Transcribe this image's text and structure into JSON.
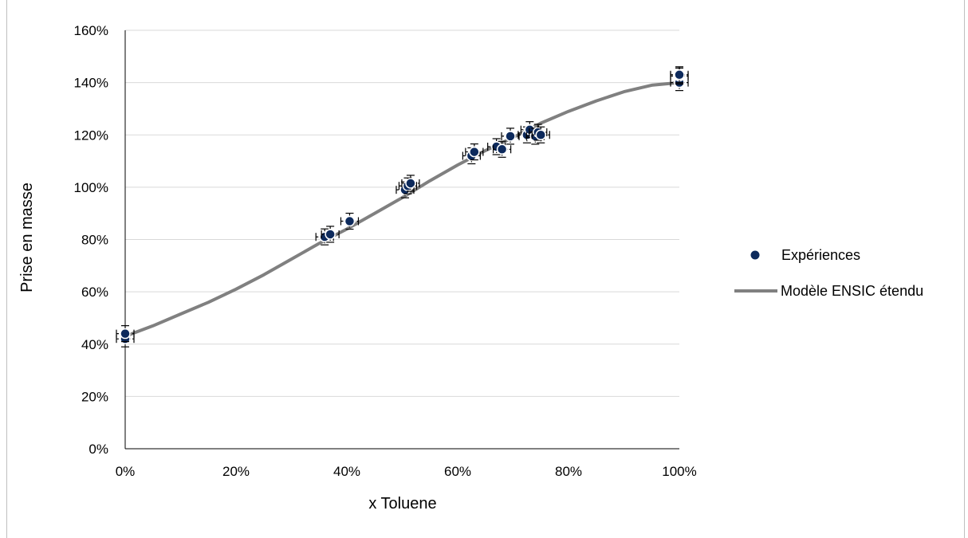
{
  "chart_data": {
    "type": "scatter",
    "title": "",
    "xlabel": "x Toluene",
    "ylabel": "Prise en masse",
    "xlim": [
      0,
      1
    ],
    "ylim": [
      0,
      1.6
    ],
    "x_ticks": [
      "0%",
      "20%",
      "40%",
      "60%",
      "80%",
      "100%"
    ],
    "y_ticks": [
      "0%",
      "20%",
      "40%",
      "60%",
      "80%",
      "100%",
      "120%",
      "140%",
      "160%"
    ],
    "grid": "horizontal",
    "legend_position": "right",
    "series": [
      {
        "name": "Expériences",
        "kind": "scatter",
        "color": "#0d2a5c",
        "points": [
          {
            "x": 0.0,
            "y": 0.42
          },
          {
            "x": 0.0,
            "y": 0.44
          },
          {
            "x": 0.36,
            "y": 0.81
          },
          {
            "x": 0.37,
            "y": 0.82
          },
          {
            "x": 0.405,
            "y": 0.87
          },
          {
            "x": 0.505,
            "y": 0.99
          },
          {
            "x": 0.51,
            "y": 1.005
          },
          {
            "x": 0.515,
            "y": 1.015
          },
          {
            "x": 0.625,
            "y": 1.12
          },
          {
            "x": 0.63,
            "y": 1.135
          },
          {
            "x": 0.67,
            "y": 1.155
          },
          {
            "x": 0.68,
            "y": 1.145
          },
          {
            "x": 0.695,
            "y": 1.195
          },
          {
            "x": 0.725,
            "y": 1.2
          },
          {
            "x": 0.73,
            "y": 1.22
          },
          {
            "x": 0.74,
            "y": 1.195
          },
          {
            "x": 0.745,
            "y": 1.21
          },
          {
            "x": 0.75,
            "y": 1.2
          },
          {
            "x": 1.0,
            "y": 1.4
          },
          {
            "x": 1.0,
            "y": 1.425
          },
          {
            "x": 1.0,
            "y": 1.43
          }
        ]
      },
      {
        "name": "Modèle ENSIC étendu",
        "kind": "line",
        "color": "#808080",
        "points": [
          {
            "x": 0.0,
            "y": 0.43
          },
          {
            "x": 0.05,
            "y": 0.47
          },
          {
            "x": 0.1,
            "y": 0.515
          },
          {
            "x": 0.15,
            "y": 0.56
          },
          {
            "x": 0.2,
            "y": 0.61
          },
          {
            "x": 0.25,
            "y": 0.665
          },
          {
            "x": 0.3,
            "y": 0.725
          },
          {
            "x": 0.35,
            "y": 0.785
          },
          {
            "x": 0.4,
            "y": 0.84
          },
          {
            "x": 0.45,
            "y": 0.9
          },
          {
            "x": 0.5,
            "y": 0.96
          },
          {
            "x": 0.55,
            "y": 1.025
          },
          {
            "x": 0.6,
            "y": 1.085
          },
          {
            "x": 0.65,
            "y": 1.14
          },
          {
            "x": 0.7,
            "y": 1.19
          },
          {
            "x": 0.75,
            "y": 1.245
          },
          {
            "x": 0.8,
            "y": 1.29
          },
          {
            "x": 0.85,
            "y": 1.33
          },
          {
            "x": 0.9,
            "y": 1.365
          },
          {
            "x": 0.95,
            "y": 1.39
          },
          {
            "x": 1.0,
            "y": 1.4
          }
        ]
      }
    ]
  }
}
